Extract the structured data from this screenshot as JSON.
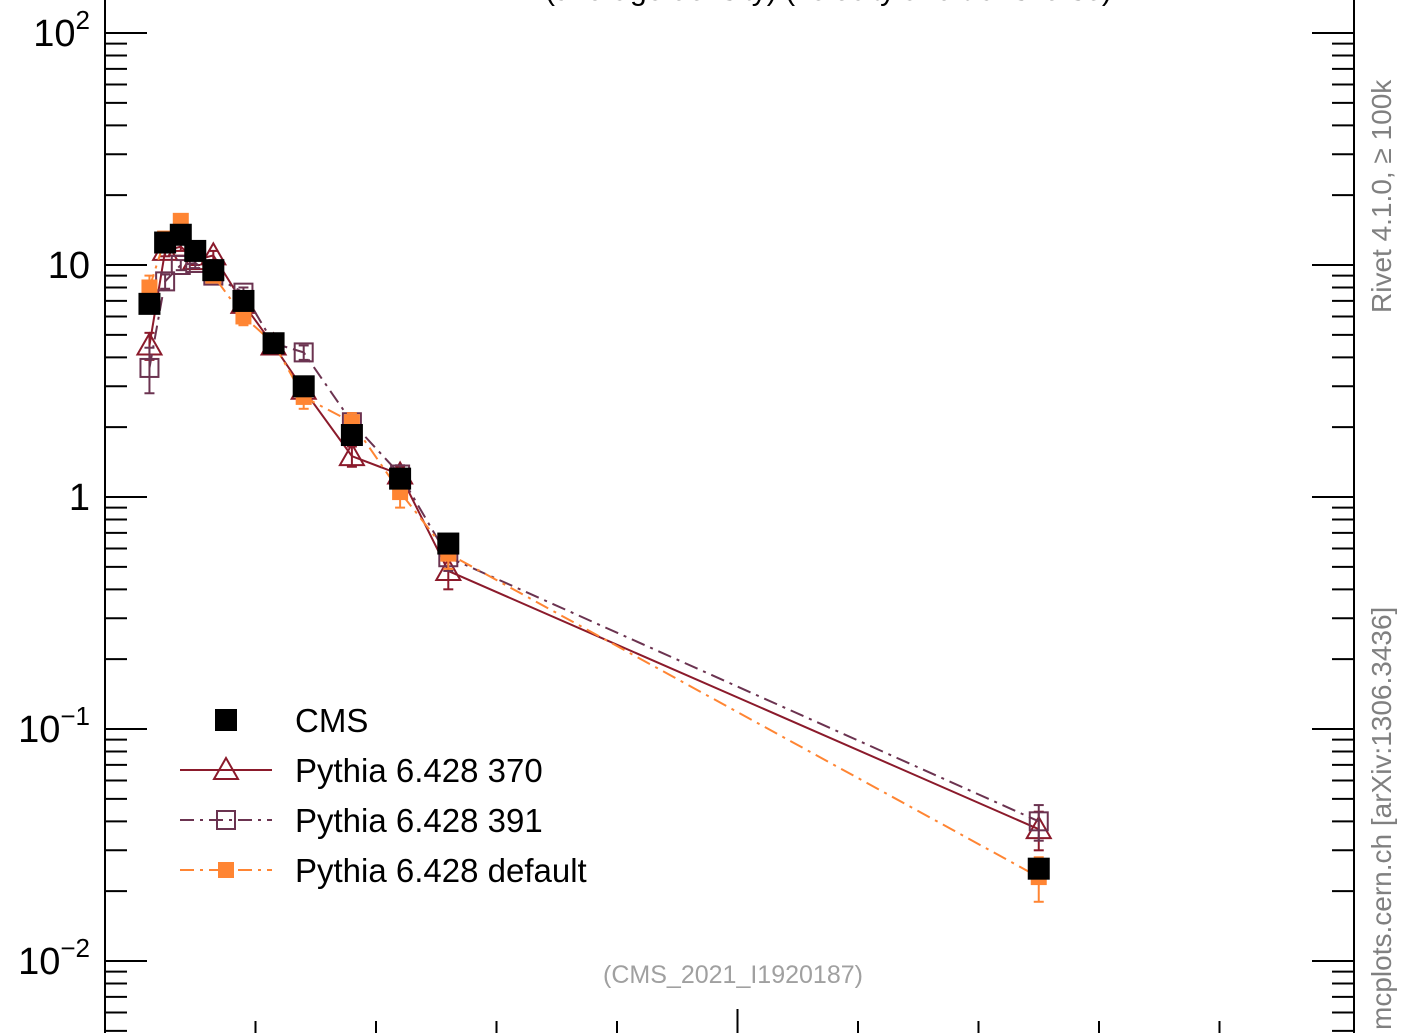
{
  "title_fragment": "(average density) (velocity and transverse)",
  "side_labels": {
    "rivet": "Rivet 4.1.0, ≥ 100k",
    "mcplots": "mcplots.cern.ch [arXiv:1306.3436]"
  },
  "analysis_tag": "(CMS_2021_I1920187)",
  "chart_data": {
    "type": "scatter",
    "title": "",
    "xlabel": "",
    "ylabel": "",
    "yscale": "log",
    "ylim": [
      0.006,
      150
    ],
    "xlim": [
      0,
      10
    ],
    "y_ticks": [
      {
        "value": 0.01,
        "label": "10^-2",
        "base": "10",
        "exp": "−2"
      },
      {
        "value": 0.1,
        "label": "10^-1",
        "base": "10",
        "exp": "−1"
      },
      {
        "value": 1,
        "label": "1",
        "base": "1",
        "exp": ""
      },
      {
        "value": 10,
        "label": "10",
        "base": "10",
        "exp": ""
      },
      {
        "value": 100,
        "label": "10^2",
        "base": "10",
        "exp": "2"
      }
    ],
    "grid": false,
    "legend_position": "bottom-left",
    "series": [
      {
        "name": "CMS",
        "color": "#000000",
        "marker": "filled-square",
        "line": "none",
        "x": [
          0.12,
          0.25,
          0.38,
          0.5,
          0.65,
          0.9,
          1.15,
          1.4,
          1.8,
          2.2,
          2.6,
          7.5
        ],
        "y": [
          6.8,
          12.5,
          13.5,
          11.5,
          9.5,
          7.0,
          4.6,
          3.0,
          1.85,
          1.2,
          0.63,
          0.025
        ]
      },
      {
        "name": "Pythia 6.428 370",
        "color": "#8b1a2b",
        "marker": "open-triangle",
        "line": "solid",
        "x": [
          0.12,
          0.25,
          0.38,
          0.5,
          0.65,
          0.9,
          1.15,
          1.4,
          1.8,
          2.2,
          2.6,
          7.5
        ],
        "y": [
          4.5,
          11.5,
          12.0,
          10.5,
          11.0,
          6.8,
          4.5,
          2.9,
          1.5,
          1.25,
          0.48,
          0.037
        ],
        "yerr": [
          0.6,
          0.6,
          0.5,
          0.5,
          0.5,
          0.4,
          0.3,
          0.25,
          0.15,
          0.1,
          0.08,
          0.007
        ]
      },
      {
        "name": "Pythia 6.428 391",
        "color": "#6b3350",
        "marker": "open-square",
        "line": "dash-dot",
        "x": [
          0.12,
          0.25,
          0.38,
          0.5,
          0.65,
          0.9,
          1.15,
          1.4,
          1.8,
          2.2,
          2.6,
          7.5
        ],
        "y": [
          3.6,
          8.5,
          10.0,
          10.2,
          9.0,
          7.6,
          4.6,
          4.2,
          2.1,
          1.25,
          0.55,
          0.04
        ],
        "yerr": [
          0.8,
          0.6,
          0.5,
          0.5,
          0.5,
          0.4,
          0.3,
          0.3,
          0.2,
          0.12,
          0.07,
          0.007
        ]
      },
      {
        "name": "Pythia 6.428 default",
        "color": "#ff8533",
        "marker": "filled-square-small",
        "line": "dash-dot",
        "x": [
          0.12,
          0.25,
          0.38,
          0.5,
          0.65,
          0.9,
          1.15,
          1.4,
          1.8,
          2.2,
          2.6,
          7.5
        ],
        "y": [
          8.0,
          13.0,
          15.5,
          11.5,
          9.0,
          6.0,
          4.6,
          2.7,
          2.1,
          1.05,
          0.57,
          0.023
        ],
        "yerr": [
          1.0,
          0.8,
          0.7,
          0.6,
          0.5,
          0.5,
          0.3,
          0.3,
          0.2,
          0.15,
          0.08,
          0.005
        ]
      }
    ]
  }
}
